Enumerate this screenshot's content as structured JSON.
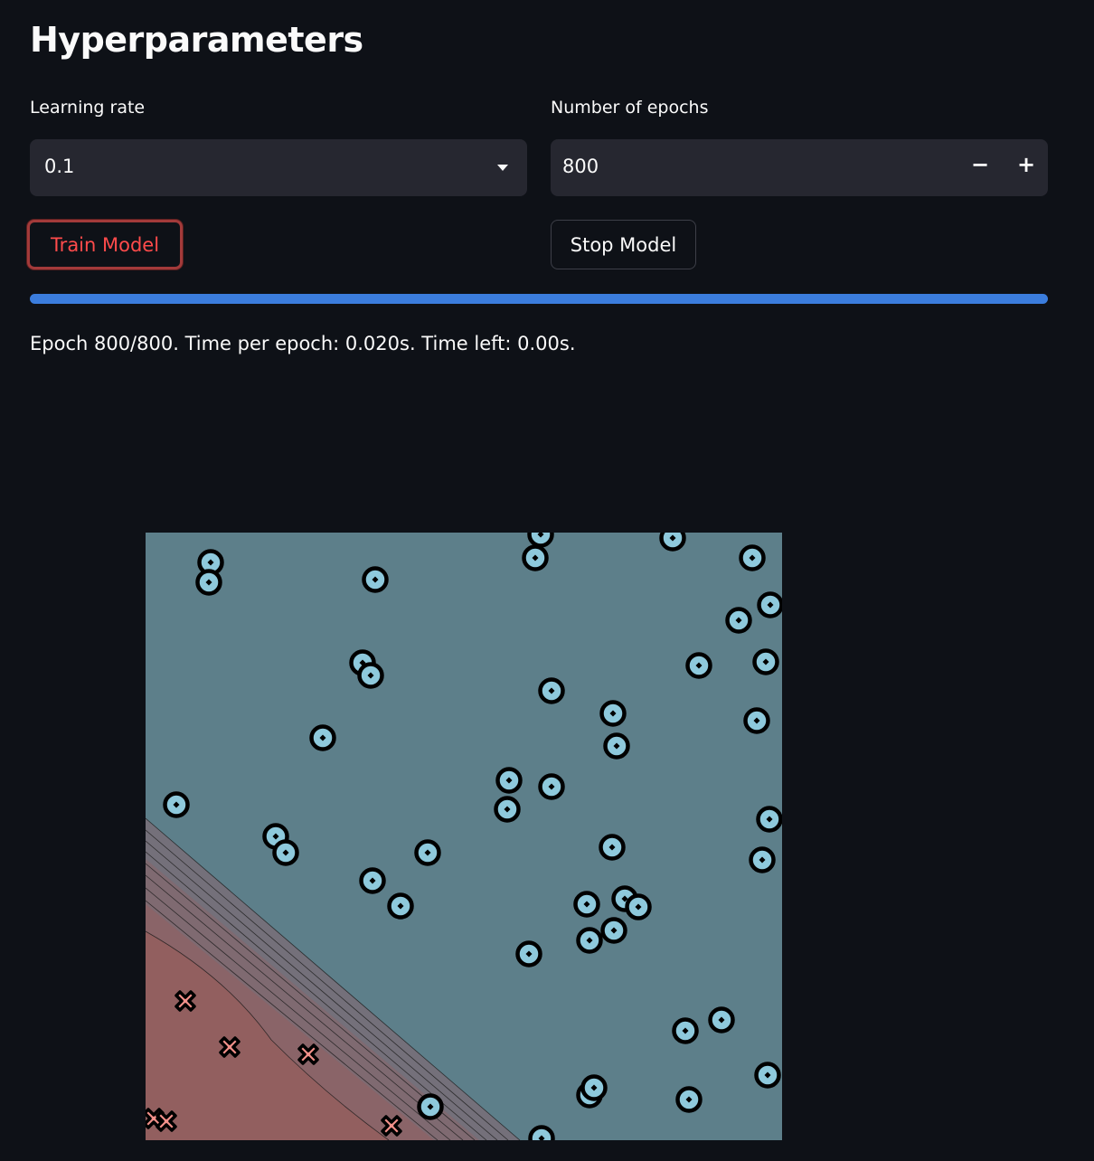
{
  "header": {
    "title": "Hyperparameters"
  },
  "learning_rate": {
    "label": "Learning rate",
    "value": "0.1"
  },
  "epochs": {
    "label": "Number of epochs",
    "value": "800",
    "decrement": "−",
    "increment": "+"
  },
  "buttons": {
    "train": "Train Model",
    "stop": "Stop Model"
  },
  "status": "Epoch 800/800. Time per epoch: 0.020s. Time left: 0.00s."
}
